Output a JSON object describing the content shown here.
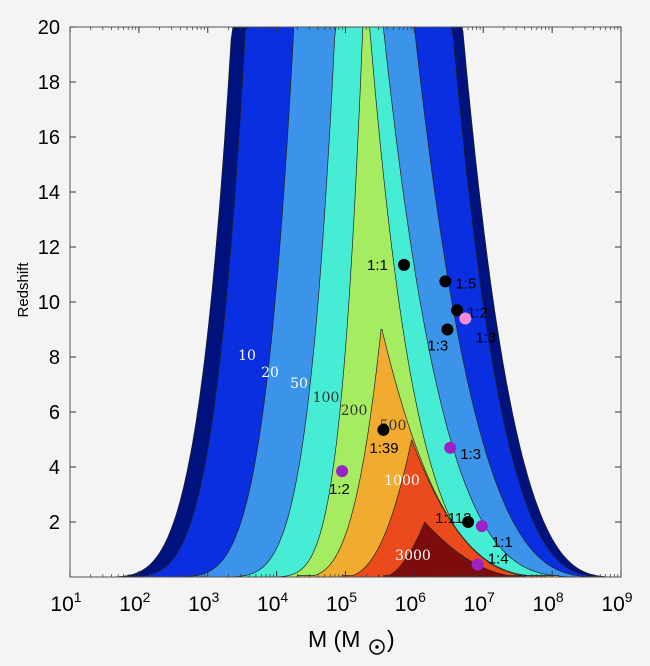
{
  "chart_data": {
    "type": "contour",
    "xlabel_main": "M (M",
    "xlabel_end": ")",
    "ylabel": "Redshift",
    "xscale": "log",
    "xlim_log10": [
      1,
      9
    ],
    "ylim": [
      0,
      20
    ],
    "x_ticks": [
      {
        "exp": 1,
        "base": "10",
        "sup": "1"
      },
      {
        "exp": 2,
        "base": "10",
        "sup": "2"
      },
      {
        "exp": 3,
        "base": "10",
        "sup": "3"
      },
      {
        "exp": 4,
        "base": "10",
        "sup": "4"
      },
      {
        "exp": 5,
        "base": "10",
        "sup": "5"
      },
      {
        "exp": 6,
        "base": "10",
        "sup": "6"
      },
      {
        "exp": 7,
        "base": "10",
        "sup": "7"
      },
      {
        "exp": 8,
        "base": "10",
        "sup": "8"
      },
      {
        "exp": 9,
        "base": "10",
        "sup": "9"
      }
    ],
    "y_ticks": [
      "2",
      "4",
      "6",
      "8",
      "10",
      "12",
      "14",
      "16",
      "18",
      "20"
    ],
    "contour_levels": [
      {
        "label": "10",
        "color": "#00127d",
        "label_color": "#ffffff"
      },
      {
        "label": "20",
        "color": "#0a2fe0",
        "label_color": "#ffffff"
      },
      {
        "label": "50",
        "color": "#3b93ea",
        "label_color": "#ffffff"
      },
      {
        "label": "100",
        "color": "#46ecd4",
        "label_color": "#333333"
      },
      {
        "label": "200",
        "color": "#a5ec61",
        "label_color": "#333333"
      },
      {
        "label": "500",
        "color": "#f1ac30",
        "label_color": "#333333"
      },
      {
        "label": "1000",
        "color": "#eb4a1d",
        "label_color": "#ffffff"
      },
      {
        "label": "3000",
        "color": "#7c0d0c",
        "label_color": "#ffffff"
      }
    ],
    "points": [
      {
        "label": "1:1",
        "x_log10": 5.85,
        "y": 11.35,
        "color": "#000000"
      },
      {
        "label": "1:5",
        "x_log10": 6.45,
        "y": 10.75,
        "color": "#000000"
      },
      {
        "label": "1:2",
        "x_log10": 6.62,
        "y": 9.7,
        "color": "#000000"
      },
      {
        "label": "1:3",
        "x_log10": 6.48,
        "y": 9.0,
        "color": "#000000"
      },
      {
        "label": "1:3",
        "x_log10": 6.74,
        "y": 9.4,
        "color": "#f58ad7"
      },
      {
        "label": "1:39",
        "x_log10": 5.55,
        "y": 5.35,
        "color": "#000000"
      },
      {
        "label": "1:3",
        "x_log10": 6.52,
        "y": 4.7,
        "color": "#9b22c6"
      },
      {
        "label": "1:2",
        "x_log10": 4.95,
        "y": 3.85,
        "color": "#9b22c6"
      },
      {
        "label": "1:112",
        "x_log10": 6.78,
        "y": 2.0,
        "color": "#000000"
      },
      {
        "label": "1:1",
        "x_log10": 6.98,
        "y": 1.85,
        "color": "#9b22c6"
      },
      {
        "label": "1:4",
        "x_log10": 6.92,
        "y": 0.45,
        "color": "#9b22c6"
      }
    ]
  }
}
